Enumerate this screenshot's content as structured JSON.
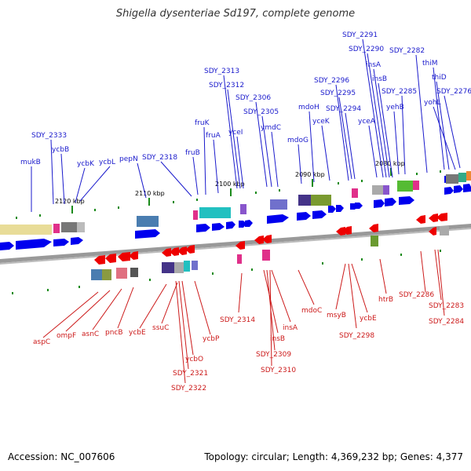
{
  "title": "Shigella dysenteriae Sd197, complete genome",
  "footer": {
    "accession": "Accession: NC_007606",
    "summary": "Topology: circular; Length: 4,369,232 bp; Genes: 4,377"
  },
  "colors": {
    "top_labels": "#1a1acc",
    "bottom_labels": "#cc1a1a",
    "forward_gene": "#0000ee",
    "reverse_gene": "#ee0000",
    "backbone": "#888888",
    "ticks": "#1a8a1a"
  },
  "scale_ticks": [
    "2120 kbp",
    "2110 kbp",
    "2100 kbp",
    "2090 kbp",
    "2080 kbp"
  ],
  "top_genes": [
    "mukB",
    "SDY_2333",
    "ycbB",
    "ycbK",
    "ycbL",
    "pepN",
    "SDY_2318",
    "fruB",
    "fruK",
    "fruA",
    "SDY_2313",
    "SDY_2312",
    "yceI",
    "SDY_2306",
    "SDY_2305",
    "ymdC",
    "mdoG",
    "mdoH",
    "SDY_2296",
    "SDY_2295",
    "SDY_2294",
    "yceK",
    "yceA",
    "SDY_2291",
    "SDY_2290",
    "insA",
    "insB",
    "SDY_2285",
    "yehB",
    "SDY_2282",
    "thiM",
    "thiD",
    "yohL",
    "SDY_2276"
  ],
  "bottom_genes": [
    "aspC",
    "ompF",
    "asnC",
    "pncB",
    "ycbE",
    "ssuC",
    "ycbP",
    "ycbO",
    "SDY_2321",
    "SDY_2322",
    "SDY_2314",
    "insB",
    "SDY_2309",
    "SDY_2310",
    "insA",
    "mdoC",
    "msyB",
    "SDY_2298",
    "ycbE",
    "htrB",
    "SDY_2286",
    "SDY_2283",
    "SDY_2284"
  ]
}
